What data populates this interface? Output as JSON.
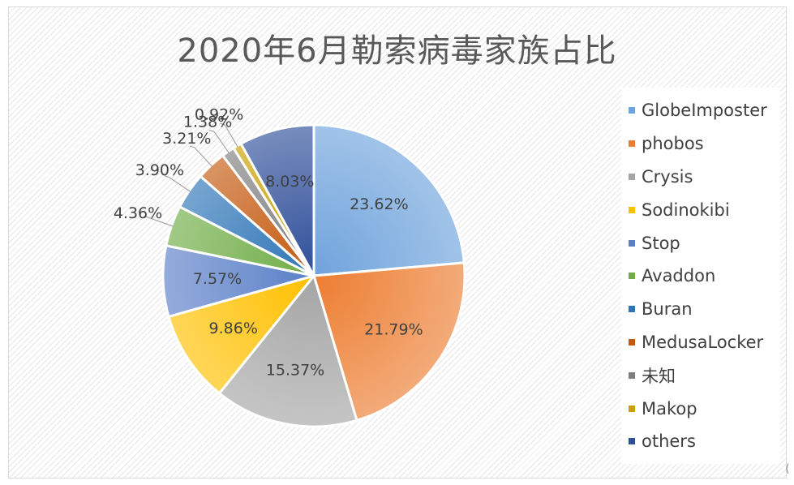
{
  "chart_data": {
    "type": "pie",
    "title": "2020年6月勒索病毒家族占比",
    "legend_position": "right",
    "categories": [
      "GlobeImposter",
      "phobos",
      "Crysis",
      "Sodinokibi",
      "Stop",
      "Avaddon",
      "Buran",
      "MedusaLocker",
      "未知",
      "Makop",
      "others"
    ],
    "values": [
      23.62,
      21.79,
      15.37,
      9.86,
      7.57,
      4.36,
      3.9,
      3.21,
      1.38,
      0.92,
      8.03
    ],
    "labels": [
      "23.62%",
      "21.79%",
      "15.37%",
      "9.86%",
      "7.57%",
      "4.36%",
      "3.90%",
      "3.21%",
      "1.38%",
      "0.92%",
      "8.03%"
    ],
    "colors": [
      "#6fa3dc",
      "#ed7d31",
      "#a5a5a5",
      "#ffc000",
      "#5b80c8",
      "#70ad47",
      "#2e75b6",
      "#c55a11",
      "#7f7f7f",
      "#c9a000",
      "#2f4f99"
    ]
  },
  "ui": {
    "scroll_arrow_icon": "left-arrow-icon",
    "scroll_arrow_glyph": "⟨"
  }
}
